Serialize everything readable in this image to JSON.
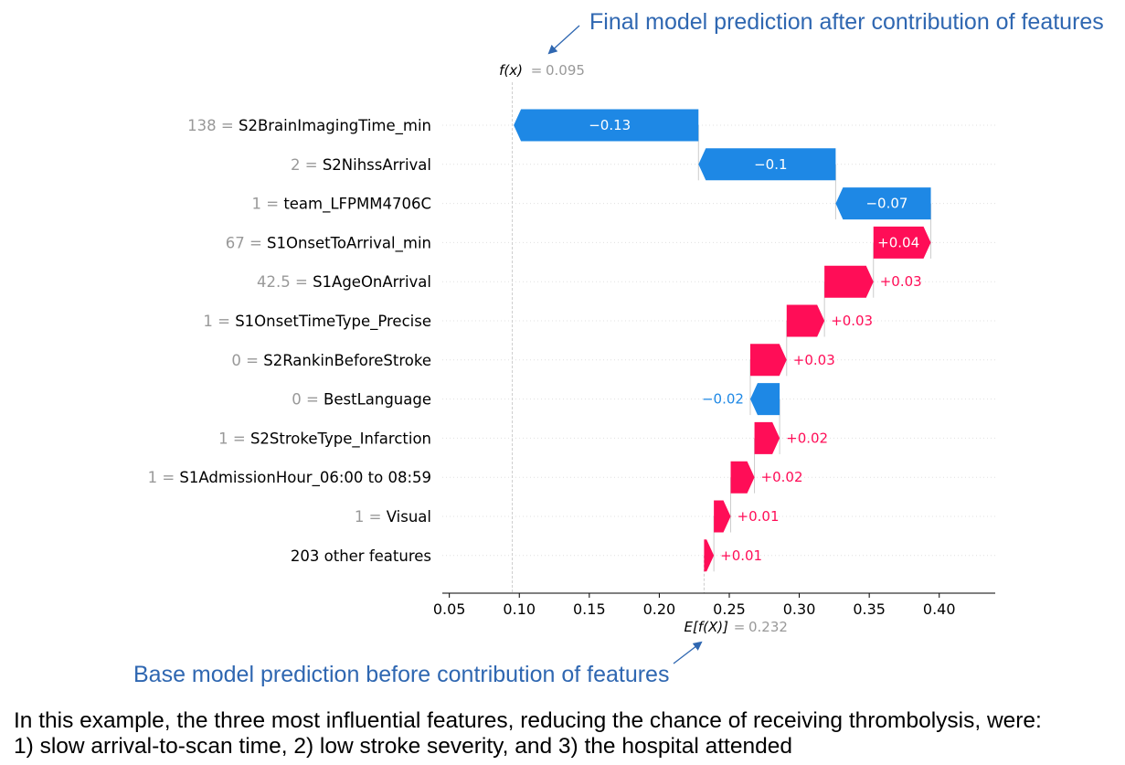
{
  "annotations": {
    "top": "Final model prediction after contribution of features",
    "bottom": "Base model prediction before contribution of features"
  },
  "caption": {
    "line1": "In this example, the three most influential features, reducing the chance of receiving thrombolysis, were:",
    "line2": "1) slow arrival-to-scan time, 2) low stroke severity, and 3) the hospital attended"
  },
  "colors": {
    "positive": "#ff0d57",
    "negative": "#1e88e5",
    "value_label": "#999999",
    "label": "#000000"
  },
  "chart_data": {
    "type": "waterfall",
    "fx_label": "f(x)",
    "fx_value": "0.095",
    "ex_label": "E[f(X)]",
    "ex_value": "0.232",
    "final_prediction": 0.095,
    "base_value": 0.232,
    "xlim": [
      0.045,
      0.44
    ],
    "xticks": [
      0.05,
      0.1,
      0.15,
      0.2,
      0.25,
      0.3,
      0.35,
      0.4
    ],
    "xtick_labels": [
      "0.05",
      "0.10",
      "0.15",
      "0.20",
      "0.25",
      "0.30",
      "0.35",
      "0.40"
    ],
    "features": [
      {
        "value": "138",
        "name": "S2BrainImagingTime_min",
        "contribution": -0.132,
        "label": "−0.13"
      },
      {
        "value": "2",
        "name": "S2NihssArrival",
        "contribution": -0.098,
        "label": "−0.1"
      },
      {
        "value": "1",
        "name": "team_LFPMM4706C",
        "contribution": -0.068,
        "label": "−0.07"
      },
      {
        "value": "67",
        "name": "S1OnsetToArrival_min",
        "contribution": 0.041,
        "label": "+0.04"
      },
      {
        "value": "42.5",
        "name": "S1AgeOnArrival",
        "contribution": 0.035,
        "label": "+0.03"
      },
      {
        "value": "1",
        "name": "S1OnsetTimeType_Precise",
        "contribution": 0.027,
        "label": "+0.03"
      },
      {
        "value": "0",
        "name": "S2RankinBeforeStroke",
        "contribution": 0.026,
        "label": "+0.03"
      },
      {
        "value": "0",
        "name": "BestLanguage",
        "contribution": -0.021,
        "label": "−0.02"
      },
      {
        "value": "1",
        "name": "S2StrokeType_Infarction",
        "contribution": 0.018,
        "label": "+0.02"
      },
      {
        "value": "1",
        "name": "S1AdmissionHour_06:00 to 08:59",
        "contribution": 0.017,
        "label": "+0.02"
      },
      {
        "value": "1",
        "name": "Visual",
        "contribution": 0.012,
        "label": "+0.01"
      },
      {
        "value": "",
        "name": "203 other features",
        "contribution": 0.007,
        "label": "+0.01"
      }
    ]
  }
}
